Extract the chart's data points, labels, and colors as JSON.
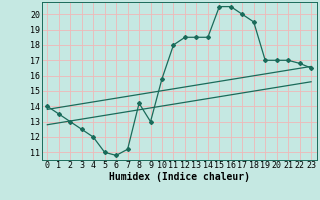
{
  "title": "",
  "xlabel": "Humidex (Indice chaleur)",
  "bg_color": "#c5e8e2",
  "line_color": "#1a6b5a",
  "grid_color": "#f0b8b8",
  "xlim": [
    -0.5,
    23.5
  ],
  "ylim": [
    10.5,
    20.8
  ],
  "xticks": [
    0,
    1,
    2,
    3,
    4,
    5,
    6,
    7,
    8,
    9,
    10,
    11,
    12,
    13,
    14,
    15,
    16,
    17,
    18,
    19,
    20,
    21,
    22,
    23
  ],
  "yticks": [
    11,
    12,
    13,
    14,
    15,
    16,
    17,
    18,
    19,
    20
  ],
  "curve_x": [
    0,
    1,
    2,
    3,
    4,
    5,
    6,
    7,
    8,
    9,
    10,
    11,
    12,
    13,
    14,
    15,
    16,
    17,
    18,
    19,
    20,
    21,
    22,
    23
  ],
  "curve_y": [
    14.0,
    13.5,
    13.0,
    12.5,
    12.0,
    11.0,
    10.8,
    11.2,
    14.2,
    13.0,
    15.8,
    18.0,
    18.5,
    18.5,
    18.5,
    20.5,
    20.5,
    20.0,
    19.5,
    17.0,
    17.0,
    17.0,
    16.8,
    16.5
  ],
  "upper_line_x": [
    0,
    23
  ],
  "upper_line_y": [
    13.8,
    16.6
  ],
  "lower_line_x": [
    0,
    23
  ],
  "lower_line_y": [
    12.8,
    15.6
  ],
  "xlabel_fontsize": 7,
  "tick_fontsize": 6
}
